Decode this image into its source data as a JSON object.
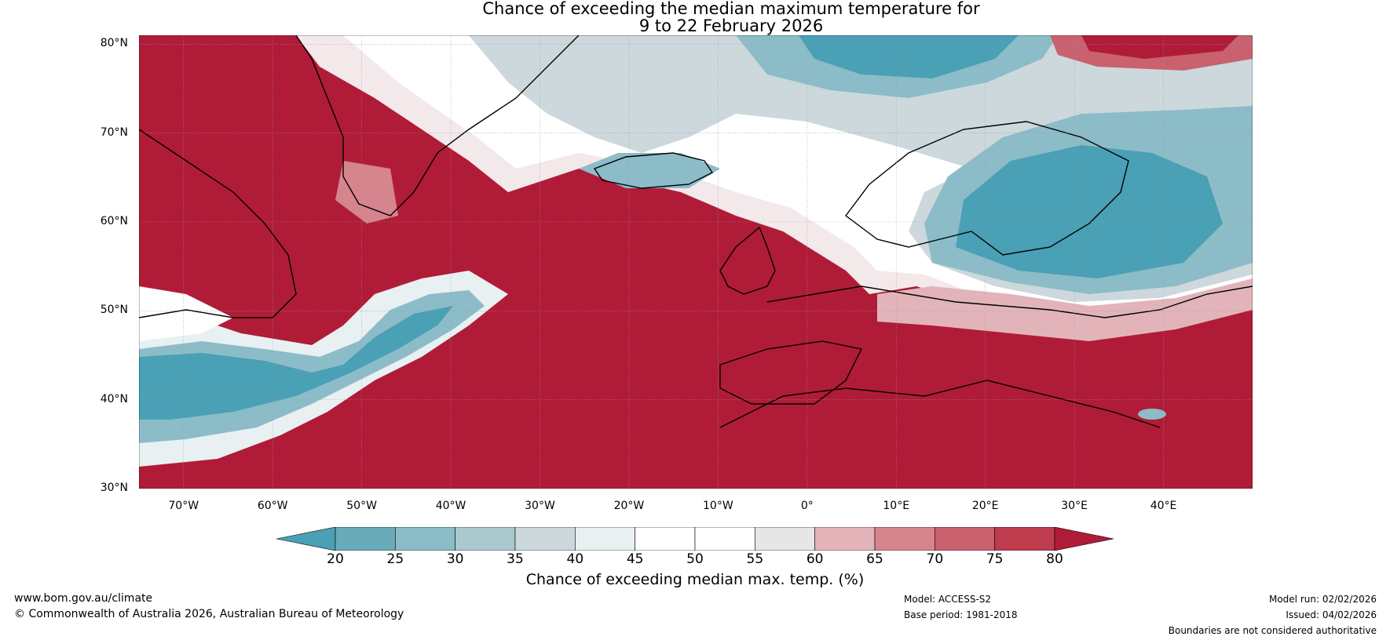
{
  "title": {
    "line1": "Chance of exceeding the median maximum temperature for",
    "line2": "9 to 22 February 2026"
  },
  "map": {
    "extent": {
      "lon_min": -75,
      "lon_max": 50,
      "lat_min": 30,
      "lat_max": 81
    },
    "lat_labels": [
      "80°N",
      "70°N",
      "60°N",
      "50°N",
      "40°N",
      "30°N"
    ],
    "lon_labels": [
      "70°W",
      "60°W",
      "50°W",
      "40°W",
      "30°W",
      "20°W",
      "10°W",
      "0°",
      "10°E",
      "20°E",
      "30°E",
      "40°E"
    ],
    "colors": {
      "warm_high": "#b01c37",
      "cool_low": "#4aa0b5",
      "neutral": "#ffffff",
      "coastline": "#000000",
      "borders": "#808080",
      "gridlines": "#999999"
    }
  },
  "colorbar": {
    "ticks": [
      "20",
      "25",
      "30",
      "35",
      "40",
      "45",
      "50",
      "55",
      "60",
      "65",
      "70",
      "75",
      "80"
    ],
    "colors": [
      "#4aa0b5",
      "#6aaab9",
      "#8cbcc8",
      "#aac8cd",
      "#ccd8dc",
      "#e8f0f2",
      "#ffffff",
      "#ffffff",
      "#e6e6e6",
      "#e2b4ba",
      "#d6848d",
      "#c9626e",
      "#bd3c4e",
      "#b01c37"
    ],
    "label": "Chance of exceeding median max. temp. (%)"
  },
  "footer": {
    "website": "www.bom.gov.au/climate",
    "copyright": "© Commonwealth of Australia 2026, Australian Bureau of Meteorology",
    "model": "Model: ACCESS-S2",
    "base_period": "Base period: 1981-2018",
    "model_run": "Model run: 02/02/2026",
    "issued": "Issued: 04/02/2026",
    "disclaimer": "Boundaries are not considered authoritative"
  }
}
